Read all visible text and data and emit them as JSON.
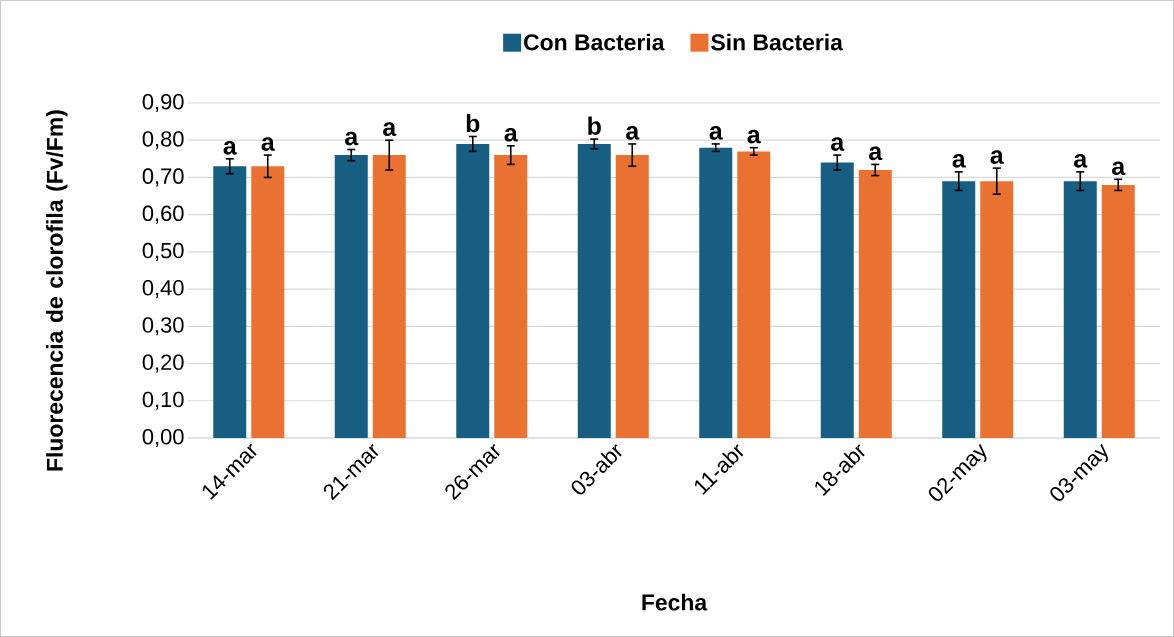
{
  "chart_data": {
    "type": "bar",
    "xlabel": "Fecha",
    "ylabel": "Fluorecencia de clorofila (Fv/Fm)",
    "categories": [
      "14-mar",
      "21-mar",
      "26-mar",
      "03-abr",
      "11-abr",
      "18-abr",
      "02-may",
      "03-may"
    ],
    "series": [
      {
        "name": "Con Bacteria",
        "color": "#175e82",
        "values": [
          0.73,
          0.76,
          0.79,
          0.79,
          0.78,
          0.74,
          0.69,
          0.69
        ],
        "errors": [
          0.02,
          0.015,
          0.02,
          0.013,
          0.01,
          0.02,
          0.025,
          0.025
        ],
        "value_labels": [
          "a",
          "a",
          "b",
          "b",
          "a",
          "a",
          "a",
          "a"
        ]
      },
      {
        "name": "Sin Bacteria",
        "color": "#e97132",
        "values": [
          0.73,
          0.76,
          0.76,
          0.76,
          0.77,
          0.72,
          0.69,
          0.68
        ],
        "errors": [
          0.03,
          0.04,
          0.025,
          0.03,
          0.01,
          0.015,
          0.035,
          0.015
        ],
        "value_labels": [
          "a",
          "a",
          "a",
          "a",
          "a",
          "a",
          "a",
          "a"
        ]
      }
    ],
    "ylim": [
      0,
      0.9
    ],
    "yticks": [
      {
        "value": 0,
        "label": "0,00"
      },
      {
        "value": 0.1,
        "label": "0,10"
      },
      {
        "value": 0.2,
        "label": "0,20"
      },
      {
        "value": 0.3,
        "label": "0,30"
      },
      {
        "value": 0.4,
        "label": "0,40"
      },
      {
        "value": 0.5,
        "label": "0,50"
      },
      {
        "value": 0.6,
        "label": "0,60"
      },
      {
        "value": 0.7,
        "label": "0,70"
      },
      {
        "value": 0.8,
        "label": "0,80"
      },
      {
        "value": 0.9,
        "label": "0,90"
      }
    ],
    "grid": "y",
    "legend": "top"
  }
}
